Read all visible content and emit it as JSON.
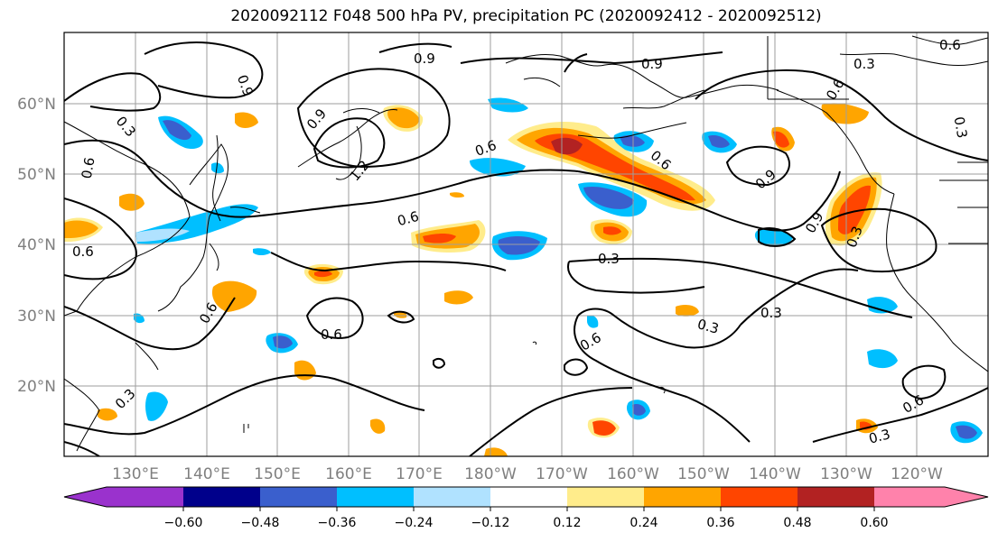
{
  "title": "2020092112 F048 500 hPa PV, precipitation PC (2020092412 - 2020092512)",
  "lat_labels": [
    "60°N",
    "50°N",
    "40°N",
    "30°N",
    "20°N"
  ],
  "lon_labels": [
    "130°E",
    "140°E",
    "150°E",
    "160°E",
    "170°E",
    "180°W",
    "170°W",
    "160°W",
    "150°W",
    "140°W",
    "130°W",
    "120°W"
  ],
  "colorbar": {
    "colors": [
      "#9a32cd",
      "#00008b",
      "#3a5fcd",
      "#00bfff",
      "#b0e2ff",
      "#ffffff",
      "#ffec8b",
      "#ffa500",
      "#ff4500",
      "#b22222",
      "#ff82ab"
    ],
    "tick_labels": [
      "−0.60",
      "−0.48",
      "−0.36",
      "−0.24",
      "−0.12",
      "0.12",
      "0.24",
      "0.36",
      "0.48",
      "0.60"
    ]
  },
  "contour_labels": [
    "0.3",
    "0.6",
    "0.9",
    "1.2"
  ],
  "colors": {
    "grid": "#9e9e9e",
    "axis_text": "#7f7f7f",
    "contour": "#000000"
  }
}
